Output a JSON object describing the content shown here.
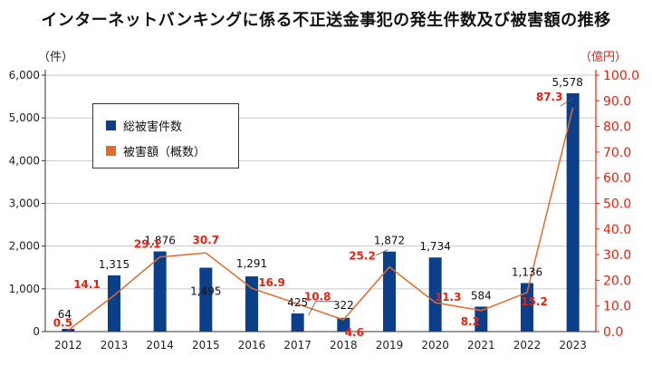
{
  "title": "インターネットバンキングに係る不正送金事犯の発生件数及び被害額の推移",
  "left_unit": "（件）",
  "right_unit": "（億円）",
  "legend": {
    "count_label": "総被害件数",
    "amount_label": "被害額（概数）"
  },
  "colors": {
    "bar": "#0b3f8a",
    "line": "#e46b2a",
    "amount_label": "#e8220f",
    "right_axis": "#e8220f"
  },
  "chart_data": {
    "type": "bar",
    "title": "インターネットバンキングに係る不正送金事犯の発生件数及び被害額の推移",
    "categories": [
      "2012",
      "2013",
      "2014",
      "2015",
      "2016",
      "2017",
      "2018",
      "2019",
      "2020",
      "2021",
      "2022",
      "2023"
    ],
    "series": [
      {
        "name": "総被害件数",
        "type": "bar",
        "axis": "left",
        "values": [
          64,
          1315,
          1876,
          1495,
          1291,
          425,
          322,
          1872,
          1734,
          584,
          1136,
          5578
        ],
        "labels": [
          "64",
          "1,315",
          "1,876",
          "1,495",
          "1,291",
          "425",
          "322",
          "1,872",
          "1,734",
          "584",
          "1,136",
          "5,578"
        ]
      },
      {
        "name": "被害額（概数）",
        "type": "line",
        "axis": "right",
        "values": [
          0.5,
          14.1,
          29.1,
          30.7,
          16.9,
          10.8,
          4.6,
          25.2,
          11.3,
          8.2,
          15.2,
          87.3
        ],
        "labels": [
          "0.5",
          "14.1",
          "29.1",
          "30.7",
          "16.9",
          "10.8",
          "4.6",
          "25.2",
          "11.3",
          "8.2",
          "15.2",
          "87.3"
        ]
      }
    ],
    "y_left": {
      "label": "（件）",
      "min": 0,
      "max": 6000,
      "ticks": [
        "0",
        "1,000",
        "2,000",
        "3,000",
        "4,000",
        "5,000",
        "6,000"
      ],
      "tick_values": [
        0,
        1000,
        2000,
        3000,
        4000,
        5000,
        6000
      ]
    },
    "y_right": {
      "label": "（億円）",
      "min": 0,
      "max": 100,
      "ticks": [
        "0.0",
        "10.0",
        "20.0",
        "30.0",
        "40.0",
        "50.0",
        "60.0",
        "70.0",
        "80.0",
        "90.0",
        "100.0"
      ],
      "tick_values": [
        0,
        10,
        20,
        30,
        40,
        50,
        60,
        70,
        80,
        90,
        100
      ]
    },
    "grid": true,
    "legend_position": "top-left"
  }
}
